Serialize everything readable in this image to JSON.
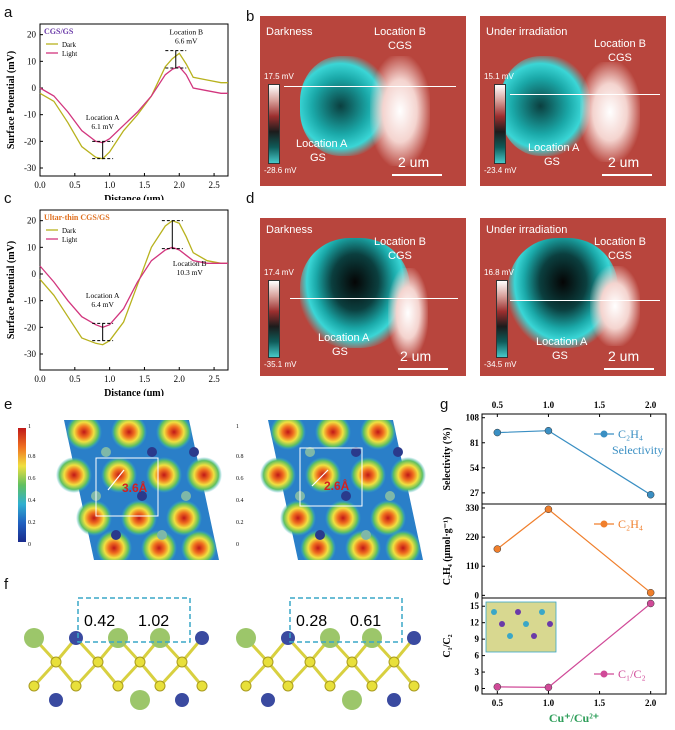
{
  "panels": {
    "a": "a",
    "b": "b",
    "c": "c",
    "d": "d",
    "e": "e",
    "f": "f",
    "g": "g"
  },
  "panel_a": {
    "title": "CGS/GS",
    "legend": [
      "Dark",
      "Light"
    ],
    "ylabel": "Surface Potential (mV)",
    "xlabel": "Distance (μm)",
    "yticks": [
      "20",
      "10",
      "0",
      "-10",
      "-20",
      "-30"
    ],
    "xticks": [
      "0.0",
      "0.5",
      "1.0",
      "1.5",
      "2.0",
      "2.5"
    ],
    "locA": "Location A",
    "locA_val": "6.1 mV",
    "locB": "Location B",
    "locB_val": "6.6 mV"
  },
  "panel_c": {
    "title": "Ultar-thin CGS/GS",
    "legend": [
      "Dark",
      "Light"
    ],
    "ylabel": "Surface Potential (mV)",
    "xlabel": "Distance (μm)",
    "yticks": [
      "20",
      "10",
      "0",
      "-10",
      "-20",
      "-30"
    ],
    "xticks": [
      "0.0",
      "0.5",
      "1.0",
      "1.5",
      "2.0",
      "2.5"
    ],
    "locA": "Location A",
    "locA_val": "6.4 mV",
    "locB": "Location B",
    "locB_val": "10.3 mV"
  },
  "panel_b": {
    "left": {
      "cond": "Darkness",
      "max": "17.5 mV",
      "min": "-28.6 mV",
      "locB": "Location B",
      "matB": "CGS",
      "locA": "Location A",
      "matA": "GS",
      "scale": "2 um"
    },
    "right": {
      "cond": "Under irradiation",
      "max": "15.1 mV",
      "min": "-23.4 mV",
      "locB": "Location B",
      "matB": "CGS",
      "locA": "Location A",
      "matA": "GS",
      "scale": "2 um"
    }
  },
  "panel_d": {
    "left": {
      "cond": "Darkness",
      "max": "17.4 mV",
      "min": "-35.1 mV",
      "locB": "Location B",
      "matB": "CGS",
      "locA": "Location A",
      "matA": "GS",
      "scale": "2 um"
    },
    "right": {
      "cond": "Under irradiation",
      "max": "16.8 mV",
      "min": "-34.5 mV",
      "locB": "Location B",
      "matB": "CGS",
      "locA": "Location A",
      "matA": "GS",
      "scale": "2 um"
    }
  },
  "panel_e": {
    "cb_max": "1",
    "cb_ticks": [
      "0.8",
      "0.6",
      "0.4",
      "0.2",
      "0"
    ],
    "left_val": "3.6Å",
    "right_val": "2.6Å"
  },
  "panel_f": {
    "left": [
      "0.42",
      "1.02"
    ],
    "right": [
      "0.28",
      "0.61"
    ]
  },
  "panel_g": {
    "top_xticks": [
      "0.5",
      "1.0",
      "1.5",
      "2.0"
    ],
    "bottom_xticks": [
      "0.5",
      "1.0",
      "1.5",
      "2.0"
    ],
    "xlabel": "Cu⁺/Cu²⁺",
    "ylabel1": "Selectivity (%)",
    "ylabel2": "C₂H₄ (μmol·g⁻¹)",
    "ylabel3": "C₁/C₂",
    "legend1": "C₂H₄",
    "legend1b": "Selectivity",
    "legend2": "C₂H₄",
    "legend3": "C₁/C₂",
    "yt1": [
      "108",
      "81",
      "54",
      "27"
    ],
    "yt2": [
      "330",
      "220",
      "110",
      "0"
    ],
    "yt3": [
      "15",
      "12",
      "9",
      "6",
      "3",
      "0"
    ]
  },
  "chart_data": [
    {
      "type": "line",
      "title": "CGS/GS",
      "xlabel": "Distance (μm)",
      "ylabel": "Surface Potential (mV)",
      "xlim": [
        0,
        2.7
      ],
      "ylim": [
        -33,
        24
      ],
      "series": [
        {
          "name": "Dark",
          "x": [
            0,
            0.2,
            0.4,
            0.6,
            0.8,
            0.9,
            1.0,
            1.2,
            1.4,
            1.6,
            1.8,
            1.9,
            2.0,
            2.1,
            2.2,
            2.4,
            2.6,
            2.7
          ],
          "values": [
            -2,
            -5,
            -13,
            -22,
            -26,
            -26.5,
            -24,
            -16,
            -10,
            -3,
            8,
            11,
            13,
            9,
            4,
            3,
            2,
            2
          ]
        },
        {
          "name": "Light",
          "x": [
            0,
            0.2,
            0.4,
            0.6,
            0.8,
            0.9,
            1.0,
            1.2,
            1.4,
            1.6,
            1.8,
            1.9,
            2.0,
            2.1,
            2.2,
            2.4,
            2.6,
            2.7
          ],
          "values": [
            0,
            -3,
            -9,
            -16,
            -20,
            -20.5,
            -19,
            -14,
            -9,
            -3,
            5,
            7,
            8,
            5,
            0,
            -1,
            -2,
            -2
          ]
        }
      ]
    },
    {
      "type": "line",
      "title": "Ultar-thin CGS/GS",
      "xlabel": "Distance (μm)",
      "ylabel": "Surface Potential (mV)",
      "xlim": [
        0,
        2.7
      ],
      "ylim": [
        -36,
        24
      ],
      "series": [
        {
          "name": "Dark",
          "x": [
            0,
            0.2,
            0.4,
            0.6,
            0.8,
            0.9,
            1.0,
            1.2,
            1.4,
            1.6,
            1.8,
            1.9,
            2.0,
            2.1,
            2.2,
            2.4,
            2.6,
            2.7
          ],
          "values": [
            -2,
            -8,
            -16,
            -24,
            -26,
            -26.5,
            -25,
            -18,
            -4,
            10,
            18,
            20,
            19,
            14,
            8,
            5,
            4,
            4
          ]
        },
        {
          "name": "Light",
          "x": [
            0,
            0.2,
            0.4,
            0.6,
            0.8,
            0.9,
            1.0,
            1.2,
            1.4,
            1.6,
            1.8,
            1.9,
            2.0,
            2.1,
            2.2,
            2.4,
            2.6,
            2.7
          ],
          "values": [
            3,
            -3,
            -10,
            -16,
            -19,
            -20,
            -19,
            -13,
            -3,
            5,
            9,
            10,
            9,
            7,
            5,
            4,
            4,
            4
          ]
        }
      ]
    },
    {
      "type": "line",
      "title": "",
      "xlabel": "Cu⁺/Cu²⁺",
      "ylabel": "Selectivity (%)",
      "ylim": [
        15,
        112
      ],
      "series": [
        {
          "name": "C₂H₄",
          "x": [
            0.5,
            1.0,
            2.0
          ],
          "values": [
            92,
            94,
            25
          ]
        }
      ]
    },
    {
      "type": "line",
      "title": "",
      "xlabel": "Cu⁺/Cu²⁺",
      "ylabel": "C₂H₄ (μmol·g⁻¹)",
      "ylim": [
        -10,
        345
      ],
      "series": [
        {
          "name": "C₂H₄",
          "x": [
            0.5,
            1.0,
            2.0
          ],
          "values": [
            175,
            325,
            10
          ]
        }
      ]
    },
    {
      "type": "line",
      "title": "",
      "xlabel": "Cu⁺/Cu²⁺",
      "ylabel": "C₁/C₂",
      "ylim": [
        -1,
        16.5
      ],
      "series": [
        {
          "name": "C₁/C₂",
          "x": [
            0.5,
            1.0,
            2.0
          ],
          "values": [
            0.3,
            0.2,
            15.5
          ]
        }
      ]
    }
  ],
  "colors": {
    "dark": "#b8b21e",
    "light": "#d2367e",
    "blue": "#3a8fc3",
    "orange": "#f07f2c",
    "pink": "#d04a98",
    "kpfm_bg": "#b8453d",
    "dashbox": "#3aa7c7"
  }
}
